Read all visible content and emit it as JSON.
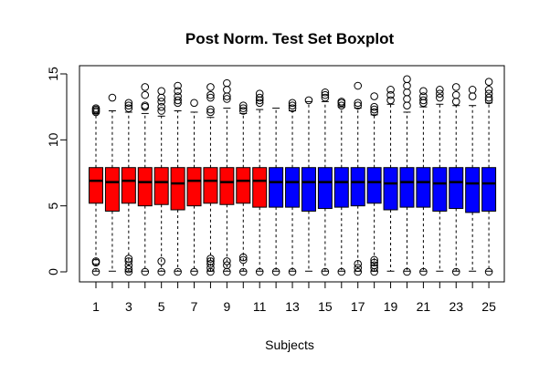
{
  "chart_data": {
    "type": "boxplot",
    "title": "Post Norm. Test Set Boxplot",
    "xlabel": "Subjects",
    "ylabel": "",
    "ylim": [
      0,
      15
    ],
    "y_ticks": [
      0,
      5,
      10,
      15
    ],
    "x_tick_labels": [
      1,
      3,
      5,
      7,
      9,
      11,
      13,
      15,
      17,
      19,
      21,
      23,
      25
    ],
    "grid": false,
    "colors": {
      "group_a": "#ff0000",
      "group_b": "#0000ff",
      "median": "#000000",
      "whisker": "#000000"
    },
    "boxes": [
      {
        "subject": 1,
        "group": "a",
        "min": 0.05,
        "q1": 5.2,
        "median": 6.9,
        "q3": 7.9,
        "max": 12.0,
        "outliers_high": [
          12.1,
          12.2,
          12.3,
          12.4
        ],
        "outliers_low": [
          0.0,
          0.7,
          0.8
        ]
      },
      {
        "subject": 2,
        "group": "a",
        "min": 0.05,
        "q1": 4.6,
        "median": 6.8,
        "q3": 7.9,
        "max": 12.2,
        "outliers_high": [
          13.2
        ],
        "outliers_low": []
      },
      {
        "subject": 3,
        "group": "a",
        "min": 0.05,
        "q1": 5.2,
        "median": 6.9,
        "q3": 7.9,
        "max": 12.1,
        "outliers_high": [
          12.4,
          12.6,
          12.8
        ],
        "outliers_low": [
          0.0,
          0.2,
          0.5,
          0.8,
          1.0
        ]
      },
      {
        "subject": 4,
        "group": "a",
        "min": 0.05,
        "q1": 5.0,
        "median": 6.8,
        "q3": 7.9,
        "max": 12.0,
        "outliers_high": [
          12.5,
          12.6,
          13.4,
          14.0
        ],
        "outliers_low": [
          0.0
        ]
      },
      {
        "subject": 5,
        "group": "a",
        "min": 0.05,
        "q1": 5.1,
        "median": 6.8,
        "q3": 7.9,
        "max": 11.8,
        "outliers_high": [
          12.2,
          12.5,
          12.9,
          13.2,
          13.7
        ],
        "outliers_low": [
          0.0,
          0.8
        ]
      },
      {
        "subject": 6,
        "group": "a",
        "min": 0.05,
        "q1": 4.7,
        "median": 6.7,
        "q3": 7.9,
        "max": 12.2,
        "outliers_high": [
          12.8,
          13.0,
          13.3,
          13.7,
          14.1
        ],
        "outliers_low": [
          0.0
        ]
      },
      {
        "subject": 7,
        "group": "a",
        "min": 0.05,
        "q1": 5.0,
        "median": 6.9,
        "q3": 7.9,
        "max": 12.1,
        "outliers_high": [
          12.8
        ],
        "outliers_low": [
          0.0
        ]
      },
      {
        "subject": 8,
        "group": "a",
        "min": 0.05,
        "q1": 5.2,
        "median": 6.9,
        "q3": 7.9,
        "max": 11.7,
        "outliers_high": [
          12.1,
          12.3,
          13.2,
          13.4,
          14.0
        ],
        "outliers_low": [
          0.0,
          0.3,
          0.6,
          0.8,
          1.0
        ]
      },
      {
        "subject": 9,
        "group": "a",
        "min": 0.05,
        "q1": 5.1,
        "median": 6.8,
        "q3": 7.9,
        "max": 12.4,
        "outliers_high": [
          13.1,
          13.3,
          13.8,
          14.3
        ],
        "outliers_low": [
          0.0,
          0.5,
          0.8
        ]
      },
      {
        "subject": 10,
        "group": "a",
        "min": 0.05,
        "q1": 5.2,
        "median": 6.9,
        "q3": 7.9,
        "max": 12.0,
        "outliers_high": [
          12.2,
          12.4,
          12.6
        ],
        "outliers_low": [
          0.0,
          0.9,
          1.1
        ]
      },
      {
        "subject": 11,
        "group": "a",
        "min": 0.05,
        "q1": 4.9,
        "median": 6.9,
        "q3": 7.9,
        "max": 12.3,
        "outliers_high": [
          12.8,
          13.0,
          13.2,
          13.5
        ],
        "outliers_low": [
          0.0
        ]
      },
      {
        "subject": 12,
        "group": "b",
        "min": 0.05,
        "q1": 4.9,
        "median": 6.8,
        "q3": 7.9,
        "max": 12.4,
        "outliers_high": [],
        "outliers_low": [
          0.0
        ]
      },
      {
        "subject": 13,
        "group": "b",
        "min": 0.05,
        "q1": 4.9,
        "median": 6.8,
        "q3": 7.9,
        "max": 12.2,
        "outliers_high": [
          12.4,
          12.6,
          12.8
        ],
        "outliers_low": [
          0.0
        ]
      },
      {
        "subject": 14,
        "group": "b",
        "min": 0.05,
        "q1": 4.6,
        "median": 6.8,
        "q3": 7.9,
        "max": 12.9,
        "outliers_high": [
          13.0
        ],
        "outliers_low": []
      },
      {
        "subject": 15,
        "group": "b",
        "min": 0.05,
        "q1": 4.8,
        "median": 6.8,
        "q3": 7.9,
        "max": 12.9,
        "outliers_high": [
          13.2,
          13.4,
          13.6
        ],
        "outliers_low": [
          0.0
        ]
      },
      {
        "subject": 16,
        "group": "b",
        "min": 0.05,
        "q1": 4.9,
        "median": 6.8,
        "q3": 7.9,
        "max": 12.5,
        "outliers_high": [
          12.6,
          12.8,
          12.9
        ],
        "outliers_low": [
          0.0
        ]
      },
      {
        "subject": 17,
        "group": "b",
        "min": 0.05,
        "q1": 5.0,
        "median": 6.8,
        "q3": 7.9,
        "max": 12.4,
        "outliers_high": [
          12.6,
          12.8,
          14.1
        ],
        "outliers_low": [
          0.0,
          0.3,
          0.6
        ]
      },
      {
        "subject": 18,
        "group": "b",
        "min": 0.05,
        "q1": 5.2,
        "median": 6.8,
        "q3": 7.9,
        "max": 11.9,
        "outliers_high": [
          12.1,
          12.3,
          12.5,
          13.3
        ],
        "outliers_low": [
          0.0,
          0.3,
          0.5,
          0.7,
          0.9
        ]
      },
      {
        "subject": 19,
        "group": "b",
        "min": 0.05,
        "q1": 4.7,
        "median": 6.7,
        "q3": 7.9,
        "max": 12.7,
        "outliers_high": [
          13.0,
          13.4,
          13.8
        ],
        "outliers_low": []
      },
      {
        "subject": 20,
        "group": "b",
        "min": 0.05,
        "q1": 4.9,
        "median": 6.8,
        "q3": 7.9,
        "max": 12.1,
        "outliers_high": [
          12.6,
          13.1,
          13.6,
          14.1,
          14.6
        ],
        "outliers_low": [
          0.0
        ]
      },
      {
        "subject": 21,
        "group": "b",
        "min": 0.05,
        "q1": 4.9,
        "median": 6.8,
        "q3": 7.9,
        "max": 12.5,
        "outliers_high": [
          12.8,
          13.0,
          13.3,
          13.7
        ],
        "outliers_low": [
          0.0
        ]
      },
      {
        "subject": 22,
        "group": "b",
        "min": 0.05,
        "q1": 4.6,
        "median": 6.7,
        "q3": 7.9,
        "max": 12.7,
        "outliers_high": [
          13.2,
          13.5,
          13.8
        ],
        "outliers_low": []
      },
      {
        "subject": 23,
        "group": "b",
        "min": 0.05,
        "q1": 4.8,
        "median": 6.8,
        "q3": 7.9,
        "max": 12.6,
        "outliers_high": [
          12.9,
          13.4,
          14.0
        ],
        "outliers_low": [
          0.0
        ]
      },
      {
        "subject": 24,
        "group": "b",
        "min": 0.05,
        "q1": 4.5,
        "median": 6.7,
        "q3": 7.9,
        "max": 12.6,
        "outliers_high": [
          13.3,
          13.8
        ],
        "outliers_low": []
      },
      {
        "subject": 25,
        "group": "b",
        "min": 0.05,
        "q1": 4.6,
        "median": 6.7,
        "q3": 7.9,
        "max": 12.8,
        "outliers_high": [
          13.0,
          13.2,
          13.5,
          13.8,
          14.4
        ],
        "outliers_low": [
          0.0
        ]
      }
    ]
  }
}
